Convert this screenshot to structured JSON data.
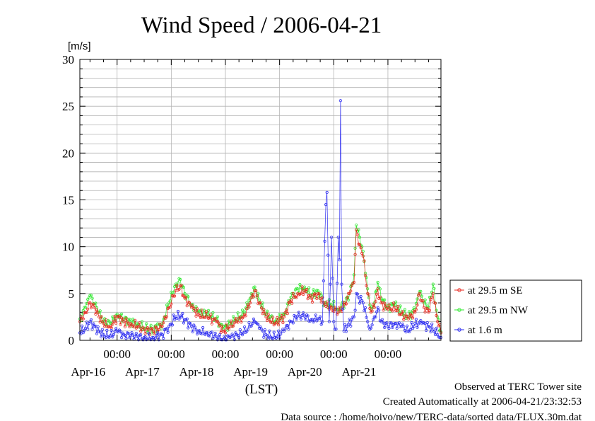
{
  "chart_data": {
    "type": "line",
    "title": "Wind Speed / 2006-04-21",
    "ylabel": "[m/s]",
    "xlabel": "(LST)",
    "ylim": [
      0,
      30
    ],
    "yticks": [
      0,
      5,
      10,
      15,
      20,
      25,
      30
    ],
    "xlim": [
      "2006-04-15 07:30",
      "2006-04-21 23:30"
    ],
    "xticks": [
      {
        "time": "00:00",
        "date": "Apr-16"
      },
      {
        "time": "00:00",
        "date": "Apr-17"
      },
      {
        "time": "00:00",
        "date": "Apr-18"
      },
      {
        "time": "00:00",
        "date": "Apr-19"
      },
      {
        "time": "00:00",
        "date": "Apr-20"
      },
      {
        "time": "00:00",
        "date": "Apr-21"
      }
    ],
    "grid": true,
    "legend_position": "right",
    "series": [
      {
        "name": "at 29.5 m SE",
        "color": "#e8271f",
        "keypoints": [
          [
            "2006-04-15 07:30",
            2.0
          ],
          [
            "2006-04-15 10:00",
            3.0
          ],
          [
            "2006-04-15 12:00",
            4.0
          ],
          [
            "2006-04-15 14:00",
            3.5
          ],
          [
            "2006-04-15 16:00",
            2.5
          ],
          [
            "2006-04-15 18:00",
            1.8
          ],
          [
            "2006-04-15 21:00",
            1.5
          ],
          [
            "2006-04-16 00:00",
            2.5
          ],
          [
            "2006-04-16 03:00",
            2.0
          ],
          [
            "2006-04-16 06:00",
            1.8
          ],
          [
            "2006-04-16 09:00",
            1.5
          ],
          [
            "2006-04-16 12:00",
            1.2
          ],
          [
            "2006-04-16 16:00",
            1.0
          ],
          [
            "2006-04-16 20:00",
            1.5
          ],
          [
            "2006-04-16 23:00",
            3.5
          ],
          [
            "2006-04-17 02:00",
            5.3
          ],
          [
            "2006-04-17 04:00",
            5.8
          ],
          [
            "2006-04-17 06:00",
            4.5
          ],
          [
            "2006-04-17 09:00",
            3.5
          ],
          [
            "2006-04-17 12:00",
            2.8
          ],
          [
            "2006-04-17 16:00",
            2.5
          ],
          [
            "2006-04-17 20:00",
            2.0
          ],
          [
            "2006-04-17 23:00",
            1.0
          ],
          [
            "2006-04-18 02:00",
            1.5
          ],
          [
            "2006-04-18 05:00",
            2.0
          ],
          [
            "2006-04-18 08:00",
            2.5
          ],
          [
            "2006-04-18 11:00",
            4.0
          ],
          [
            "2006-04-18 13:00",
            5.3
          ],
          [
            "2006-04-18 15:00",
            4.0
          ],
          [
            "2006-04-18 18:00",
            2.5
          ],
          [
            "2006-04-18 22:00",
            1.8
          ],
          [
            "2006-04-19 02:00",
            2.5
          ],
          [
            "2006-04-19 05:00",
            4.3
          ],
          [
            "2006-04-19 08:00",
            5.0
          ],
          [
            "2006-04-19 11:00",
            5.3
          ],
          [
            "2006-04-19 14:00",
            4.5
          ],
          [
            "2006-04-19 17:00",
            5.0
          ],
          [
            "2006-04-19 20:00",
            3.8
          ],
          [
            "2006-04-19 23:00",
            3.5
          ],
          [
            "2006-04-20 02:00",
            3.0
          ],
          [
            "2006-04-20 05:00",
            3.8
          ],
          [
            "2006-04-20 07:00",
            5.0
          ],
          [
            "2006-04-20 09:00",
            6.2
          ],
          [
            "2006-04-20 10:00",
            11.8
          ],
          [
            "2006-04-20 11:30",
            10.2
          ],
          [
            "2006-04-20 13:00",
            9.0
          ],
          [
            "2006-04-20 15:00",
            5.0
          ],
          [
            "2006-04-20 16:30",
            3.0
          ],
          [
            "2006-04-20 18:00",
            3.5
          ],
          [
            "2006-04-20 19:30",
            5.5
          ],
          [
            "2006-04-20 21:00",
            4.0
          ],
          [
            "2006-04-21 00:00",
            3.3
          ],
          [
            "2006-04-21 03:00",
            3.5
          ],
          [
            "2006-04-21 06:00",
            2.8
          ],
          [
            "2006-04-21 09:00",
            2.3
          ],
          [
            "2006-04-21 12:00",
            3.0
          ],
          [
            "2006-04-21 14:00",
            5.0
          ],
          [
            "2006-04-21 16:00",
            3.5
          ],
          [
            "2006-04-21 18:00",
            3.0
          ],
          [
            "2006-04-21 20:00",
            5.0
          ],
          [
            "2006-04-21 22:00",
            2.0
          ],
          [
            "2006-04-21 23:30",
            0.8
          ]
        ]
      },
      {
        "name": "at 29.5 m NW",
        "color": "#2ee82e",
        "keypoints": [
          [
            "2006-04-15 07:30",
            2.3
          ],
          [
            "2006-04-15 10:00",
            3.5
          ],
          [
            "2006-04-15 12:00",
            4.8
          ],
          [
            "2006-04-15 14:00",
            3.8
          ],
          [
            "2006-04-15 16:00",
            3.0
          ],
          [
            "2006-04-15 18:00",
            2.0
          ],
          [
            "2006-04-15 21:00",
            1.8
          ],
          [
            "2006-04-16 00:00",
            2.8
          ],
          [
            "2006-04-16 03:00",
            2.3
          ],
          [
            "2006-04-16 06:00",
            2.0
          ],
          [
            "2006-04-16 09:00",
            1.8
          ],
          [
            "2006-04-16 12:00",
            1.3
          ],
          [
            "2006-04-16 16:00",
            1.2
          ],
          [
            "2006-04-16 20:00",
            1.8
          ],
          [
            "2006-04-16 23:00",
            4.0
          ],
          [
            "2006-04-17 02:00",
            6.0
          ],
          [
            "2006-04-17 04:00",
            6.5
          ],
          [
            "2006-04-17 06:00",
            5.0
          ],
          [
            "2006-04-17 09:00",
            3.8
          ],
          [
            "2006-04-17 12:00",
            3.0
          ],
          [
            "2006-04-17 16:00",
            2.8
          ],
          [
            "2006-04-17 20:00",
            2.3
          ],
          [
            "2006-04-17 23:00",
            1.2
          ],
          [
            "2006-04-18 02:00",
            1.8
          ],
          [
            "2006-04-18 05:00",
            2.3
          ],
          [
            "2006-04-18 08:00",
            2.8
          ],
          [
            "2006-04-18 11:00",
            4.5
          ],
          [
            "2006-04-18 13:00",
            5.7
          ],
          [
            "2006-04-18 15:00",
            4.3
          ],
          [
            "2006-04-18 18:00",
            2.8
          ],
          [
            "2006-04-18 22:00",
            2.0
          ],
          [
            "2006-04-19 02:00",
            2.8
          ],
          [
            "2006-04-19 05:00",
            4.6
          ],
          [
            "2006-04-19 08:00",
            5.5
          ],
          [
            "2006-04-19 11:00",
            5.7
          ],
          [
            "2006-04-19 14:00",
            4.8
          ],
          [
            "2006-04-19 17:00",
            5.3
          ],
          [
            "2006-04-19 20:00",
            4.0
          ],
          [
            "2006-04-19 23:00",
            3.8
          ],
          [
            "2006-04-20 02:00",
            3.3
          ],
          [
            "2006-04-20 05:00",
            4.0
          ],
          [
            "2006-04-20 07:00",
            5.0
          ],
          [
            "2006-04-20 09:00",
            7.0
          ],
          [
            "2006-04-20 10:00",
            12.3
          ],
          [
            "2006-04-20 11:30",
            11.0
          ],
          [
            "2006-04-20 13:00",
            9.5
          ],
          [
            "2006-04-20 15:00",
            5.5
          ],
          [
            "2006-04-20 16:30",
            3.3
          ],
          [
            "2006-04-20 18:00",
            4.0
          ],
          [
            "2006-04-20 19:30",
            6.2
          ],
          [
            "2006-04-20 21:00",
            4.5
          ],
          [
            "2006-04-21 00:00",
            3.5
          ],
          [
            "2006-04-21 03:00",
            3.8
          ],
          [
            "2006-04-21 06:00",
            3.0
          ],
          [
            "2006-04-21 09:00",
            2.5
          ],
          [
            "2006-04-21 12:00",
            3.3
          ],
          [
            "2006-04-21 14:00",
            5.2
          ],
          [
            "2006-04-21 16:00",
            4.0
          ],
          [
            "2006-04-21 18:00",
            3.5
          ],
          [
            "2006-04-21 20:00",
            6.0
          ],
          [
            "2006-04-21 22:00",
            2.5
          ],
          [
            "2006-04-21 23:30",
            0.9
          ]
        ]
      },
      {
        "name": "at 1.6 m",
        "color": "#2b2bf0",
        "keypoints": [
          [
            "2006-04-15 07:30",
            0.8
          ],
          [
            "2006-04-15 10:00",
            1.3
          ],
          [
            "2006-04-15 12:00",
            2.0
          ],
          [
            "2006-04-15 14:00",
            1.5
          ],
          [
            "2006-04-15 16:00",
            1.0
          ],
          [
            "2006-04-15 18:00",
            0.6
          ],
          [
            "2006-04-15 21:00",
            0.5
          ],
          [
            "2006-04-16 00:00",
            1.0
          ],
          [
            "2006-04-16 03:00",
            0.6
          ],
          [
            "2006-04-16 06:00",
            0.5
          ],
          [
            "2006-04-16 09:00",
            0.4
          ],
          [
            "2006-04-16 12:00",
            0.3
          ],
          [
            "2006-04-16 16:00",
            0.3
          ],
          [
            "2006-04-16 20:00",
            0.6
          ],
          [
            "2006-04-16 23:00",
            1.5
          ],
          [
            "2006-04-17 02:00",
            2.5
          ],
          [
            "2006-04-17 04:00",
            2.6
          ],
          [
            "2006-04-17 06:00",
            2.2
          ],
          [
            "2006-04-17 09:00",
            1.5
          ],
          [
            "2006-04-17 12:00",
            1.0
          ],
          [
            "2006-04-17 16:00",
            0.8
          ],
          [
            "2006-04-17 20:00",
            0.4
          ],
          [
            "2006-04-17 23:00",
            0.1
          ],
          [
            "2006-04-18 02:00",
            0.3
          ],
          [
            "2006-04-18 05:00",
            0.6
          ],
          [
            "2006-04-18 08:00",
            0.8
          ],
          [
            "2006-04-18 11:00",
            1.5
          ],
          [
            "2006-04-18 13:00",
            2.0
          ],
          [
            "2006-04-18 15:00",
            1.3
          ],
          [
            "2006-04-18 18:00",
            0.6
          ],
          [
            "2006-04-18 22:00",
            0.3
          ],
          [
            "2006-04-19 02:00",
            1.0
          ],
          [
            "2006-04-19 05:00",
            2.0
          ],
          [
            "2006-04-19 08:00",
            2.6
          ],
          [
            "2006-04-19 11:00",
            2.6
          ],
          [
            "2006-04-19 14:00",
            2.2
          ],
          [
            "2006-04-19 17:00",
            2.3
          ],
          [
            "2006-04-19 19:00",
            2.0
          ],
          [
            "2006-04-19 20:30",
            14.5
          ],
          [
            "2006-04-19 21:00",
            15.8
          ],
          [
            "2006-04-19 22:00",
            2.0
          ],
          [
            "2006-04-19 23:00",
            11.0
          ],
          [
            "2006-04-20 00:00",
            2.0
          ],
          [
            "2006-04-20 01:00",
            1.2
          ],
          [
            "2006-04-20 02:00",
            11.0
          ],
          [
            "2006-04-20 02:30",
            8.6
          ],
          [
            "2006-04-20 03:00",
            25.6
          ],
          [
            "2006-04-20 03:30",
            6.0
          ],
          [
            "2006-04-20 04:30",
            1.0
          ],
          [
            "2006-04-20 06:00",
            1.5
          ],
          [
            "2006-04-20 08:00",
            2.2
          ],
          [
            "2006-04-20 09:00",
            2.5
          ],
          [
            "2006-04-20 10:00",
            5.0
          ],
          [
            "2006-04-20 11:00",
            4.6
          ],
          [
            "2006-04-20 13:00",
            4.0
          ],
          [
            "2006-04-20 15:00",
            2.0
          ],
          [
            "2006-04-20 16:00",
            1.2
          ],
          [
            "2006-04-20 18:00",
            2.5
          ],
          [
            "2006-04-20 19:30",
            3.5
          ],
          [
            "2006-04-20 21:00",
            2.0
          ],
          [
            "2006-04-21 00:00",
            1.5
          ],
          [
            "2006-04-21 03:00",
            1.8
          ],
          [
            "2006-04-21 06:00",
            1.5
          ],
          [
            "2006-04-21 09:00",
            1.0
          ],
          [
            "2006-04-21 12:00",
            1.8
          ],
          [
            "2006-04-21 15:00",
            1.8
          ],
          [
            "2006-04-21 18:00",
            1.5
          ],
          [
            "2006-04-21 20:00",
            1.2
          ],
          [
            "2006-04-21 22:00",
            0.6
          ],
          [
            "2006-04-21 23:30",
            0.3
          ]
        ]
      }
    ]
  },
  "footer": {
    "line1": "Observed at TERC Tower site",
    "line2": "Created Automatically at 2006-04-21/23:32:53",
    "line3": "Data source : /home/hoivo/new/TERC-data/sorted  data/FLUX.30m.dat"
  }
}
